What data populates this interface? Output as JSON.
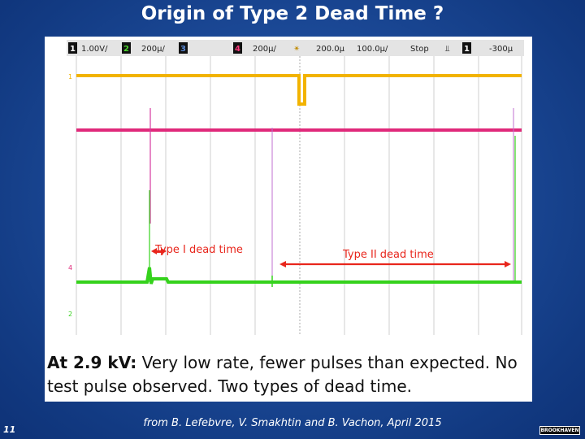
{
  "slide": {
    "title": "Origin of Type 2 Dead Time ?",
    "caption_bold": "At 2.9 kV:",
    "caption_rest": " Very low rate, fewer pulses than expected. No test pulse observed. Two types of dead time.",
    "credit": "from B. Lefebvre, V. Smakhtin and B. Vachon, April 2015",
    "slide_number": "11",
    "logo_text": "BROOKHAVEN"
  },
  "scope": {
    "ch1_label": "1",
    "ch1_scale": "1.00V/",
    "ch2_label": "2",
    "ch2_scale": "200μ/",
    "ch3_label": "3",
    "ch4_label": "4",
    "ch4_scale": "200μ/",
    "time_delay": "200.0µ",
    "time_scale": "100.0µ/",
    "status": "Stop",
    "trigger_channel": "1",
    "trigger_level": "-300μ",
    "annotation_type1": "Type I dead time",
    "annotation_type2": "Type II dead time",
    "marker_1": "1",
    "marker_4": "4",
    "marker_2": "2",
    "colors": {
      "ch1": "#f2b300",
      "ch4": "#e0297a",
      "ch2": "#35d21c",
      "annotation": "#e8261c"
    }
  }
}
